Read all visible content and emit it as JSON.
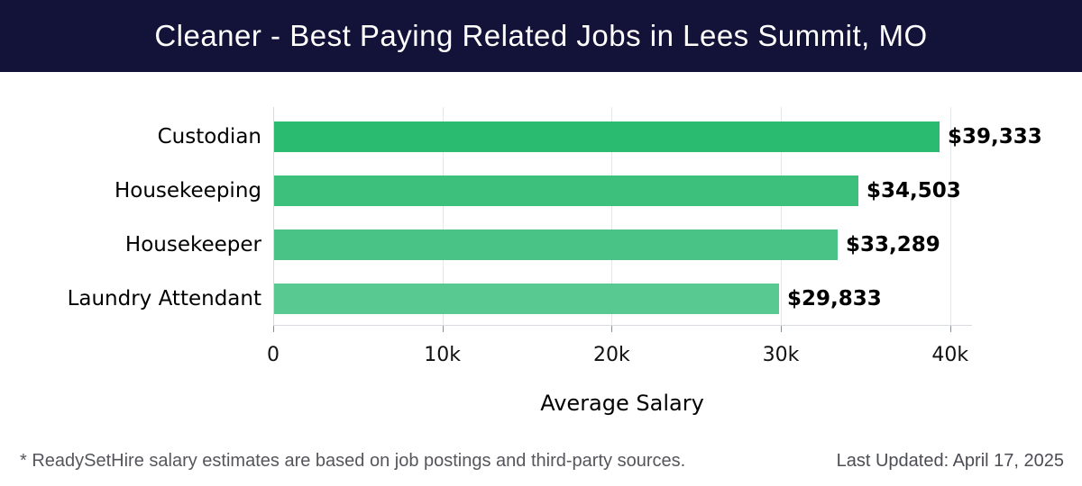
{
  "header": {
    "title": "Cleaner - Best Paying Related Jobs in Lees Summit, MO",
    "bg_color": "#131238",
    "text_color": "#ffffff"
  },
  "chart_data": {
    "type": "bar",
    "orientation": "horizontal",
    "title": "Cleaner - Best Paying Related Jobs in Lees Summit, MO",
    "categories": [
      "Custodian",
      "Housekeeping",
      "Housekeeper",
      "Laundry Attendant"
    ],
    "values": [
      39333,
      34503,
      33289,
      29833
    ],
    "value_labels": [
      "$39,333",
      "$34,503",
      "$33,289",
      "$29,833"
    ],
    "bar_colors": [
      "#2aba70",
      "#3cc07c",
      "#49c486",
      "#57c991"
    ],
    "xlabel": "Average Salary",
    "ylabel": "",
    "xlim": [
      0,
      40000
    ],
    "x_ticks": [
      {
        "value": 0,
        "label": "0"
      },
      {
        "value": 10000,
        "label": "10k"
      },
      {
        "value": 20000,
        "label": "20k"
      },
      {
        "value": 30000,
        "label": "30k"
      },
      {
        "value": 40000,
        "label": "40k"
      }
    ],
    "grid": "vertical",
    "legend": "none",
    "gridline_color": "#e4e6e9",
    "axis_line_color": "#d8dbdf",
    "tick_color": "#8a8d91"
  },
  "footer": {
    "note": "* ReadySetHire salary estimates are based on job postings and third-party sources.",
    "last_updated": "Last Updated: April 17, 2025"
  }
}
